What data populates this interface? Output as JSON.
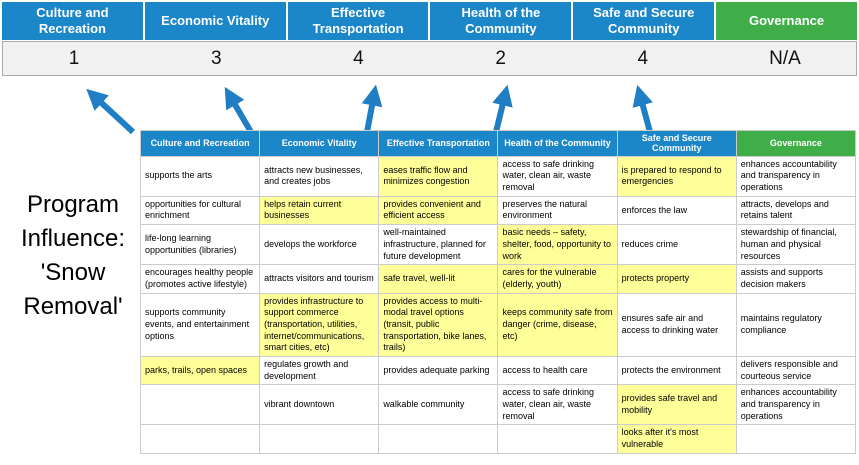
{
  "title": {
    "text": "Program\nInfluence:\n'Snow\nRemoval'"
  },
  "colors": {
    "blue": "#1b86c8",
    "green": "#3fae49",
    "highlight": "#ffff99",
    "arrow": "#1f7ec4",
    "score_bg": "#f1f1f1"
  },
  "banner": {
    "columns": [
      {
        "label": "Culture and Recreation",
        "score": "1",
        "theme": "blue"
      },
      {
        "label": "Economic Vitality",
        "score": "3",
        "theme": "blue"
      },
      {
        "label": "Effective Transportation",
        "score": "4",
        "theme": "blue"
      },
      {
        "label": "Health of the Community",
        "score": "2",
        "theme": "blue"
      },
      {
        "label": "Safe and Secure Community",
        "score": "4",
        "theme": "blue"
      },
      {
        "label": "Governance",
        "score": "N/A",
        "theme": "green"
      }
    ]
  },
  "matrix": {
    "headers": [
      {
        "label": "Culture and Recreation",
        "theme": "blue"
      },
      {
        "label": "Economic Vitality",
        "theme": "blue"
      },
      {
        "label": "Effective Transportation",
        "theme": "blue"
      },
      {
        "label": "Health of the Community",
        "theme": "blue"
      },
      {
        "label": "Safe and Secure Community",
        "theme": "blue"
      },
      {
        "label": "Governance",
        "theme": "green"
      }
    ],
    "rows": [
      [
        {
          "text": "supports the arts",
          "highlight": false
        },
        {
          "text": "attracts new businesses, and creates jobs",
          "highlight": false
        },
        {
          "text": "eases traffic flow and minimizes congestion",
          "highlight": true
        },
        {
          "text": "access to safe drinking water, clean air, waste removal",
          "highlight": false
        },
        {
          "text": "is prepared to respond to emergencies",
          "highlight": true
        },
        {
          "text": "enhances accountability and transparency in operations",
          "highlight": false
        }
      ],
      [
        {
          "text": "opportunities for cultural enrichment",
          "highlight": false
        },
        {
          "text": "helps retain current businesses",
          "highlight": true
        },
        {
          "text": "provides convenient and efficient access",
          "highlight": true
        },
        {
          "text": "preserves the natural environment",
          "highlight": false
        },
        {
          "text": "enforces the law",
          "highlight": false
        },
        {
          "text": "attracts, develops and retains talent",
          "highlight": false
        }
      ],
      [
        {
          "text": "life-long learning opportunities (libraries)",
          "highlight": false
        },
        {
          "text": "develops the workforce",
          "highlight": false
        },
        {
          "text": "well-maintained infrastructure, planned for future development",
          "highlight": false
        },
        {
          "text": "basic needs – safety, shelter, food, opportunity to work",
          "highlight": true
        },
        {
          "text": "reduces crime",
          "highlight": false
        },
        {
          "text": "stewardship of financial, human and physical resources",
          "highlight": false
        }
      ],
      [
        {
          "text": "encourages healthy people (promotes active lifestyle)",
          "highlight": false
        },
        {
          "text": "attracts visitors and tourism",
          "highlight": false
        },
        {
          "text": "safe travel, well-lit",
          "highlight": true
        },
        {
          "text": "cares for the vulnerable (elderly, youth)",
          "highlight": true
        },
        {
          "text": "protects property",
          "highlight": true
        },
        {
          "text": "assists and supports decision makers",
          "highlight": false
        }
      ],
      [
        {
          "text": "supports community events, and entertainment options",
          "highlight": false
        },
        {
          "text": "provides infrastructure to support commerce (transportation, utilities, internet/communications, smart cities, etc)",
          "highlight": true
        },
        {
          "text": "provides access to multi-modal travel options (transit, public transportation, bike lanes, trails)",
          "highlight": true
        },
        {
          "text": "keeps community safe from danger (crime, disease, etc)",
          "highlight": true
        },
        {
          "text": "ensures safe air and access to drinking water",
          "highlight": false
        },
        {
          "text": "maintains regulatory compliance",
          "highlight": false
        }
      ],
      [
        {
          "text": "parks, trails, open spaces",
          "highlight": true
        },
        {
          "text": "regulates growth and development",
          "highlight": false
        },
        {
          "text": "provides adequate parking",
          "highlight": false
        },
        {
          "text": "access to health care",
          "highlight": false
        },
        {
          "text": "protects the environment",
          "highlight": false
        },
        {
          "text": "delivers responsible and courteous service",
          "highlight": false
        }
      ],
      [
        {
          "text": "",
          "highlight": false
        },
        {
          "text": "vibrant downtown",
          "highlight": false
        },
        {
          "text": "walkable community",
          "highlight": false
        },
        {
          "text": "access to safe drinking water, clean air, waste removal",
          "highlight": false
        },
        {
          "text": "provides safe travel and mobility",
          "highlight": true
        },
        {
          "text": "enhances accountability and transparency in operations",
          "highlight": false
        }
      ],
      [
        {
          "text": "",
          "highlight": false
        },
        {
          "text": "",
          "highlight": false
        },
        {
          "text": "",
          "highlight": false
        },
        {
          "text": "",
          "highlight": false
        },
        {
          "text": "looks after it's most vulnerable",
          "highlight": true
        },
        {
          "text": "",
          "highlight": false
        }
      ]
    ]
  }
}
